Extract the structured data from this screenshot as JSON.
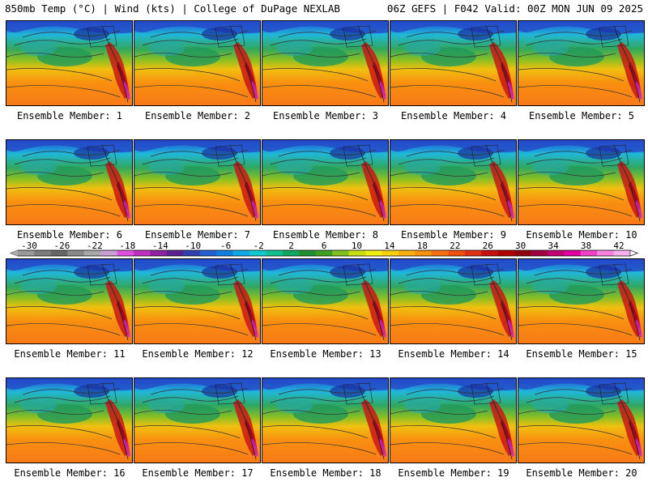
{
  "header": {
    "left": "850mb Temp (°C) | Wind (kts) | College of DuPage NEXLAB",
    "right": "06Z GEFS | F042 Valid: 00Z MON JUN 09 2025"
  },
  "member_label_prefix": "Ensemble Member: ",
  "members": [
    1,
    2,
    3,
    4,
    5,
    6,
    7,
    8,
    9,
    10,
    11,
    12,
    13,
    14,
    15,
    16,
    17,
    18,
    19,
    20
  ],
  "colorbar": {
    "tick_labels": [
      "-30",
      "-26",
      "-22",
      "-18",
      "-14",
      "-10",
      "-6",
      "-2",
      "2",
      "6",
      "10",
      "14",
      "18",
      "22",
      "26",
      "30",
      "34",
      "38",
      "42"
    ],
    "colors": [
      "#9a9a9a",
      "#7d7d7d",
      "#666666",
      "#8a8a8a",
      "#a8a8a8",
      "#c8a0d0",
      "#e050e0",
      "#c030c0",
      "#9020a0",
      "#5a2090",
      "#3040b0",
      "#2060d0",
      "#1080e0",
      "#10a8e8",
      "#10c8d0",
      "#10c090",
      "#10a860",
      "#209030",
      "#40a020",
      "#80c020",
      "#c8e010",
      "#f0f010",
      "#f8d010",
      "#f8b010",
      "#f89010",
      "#f87010",
      "#f05010",
      "#e03018",
      "#c81010",
      "#b00000",
      "#900010",
      "#a00040",
      "#c00070",
      "#e000a0",
      "#f040c8",
      "#f880e0",
      "#f8b0f0"
    ]
  }
}
